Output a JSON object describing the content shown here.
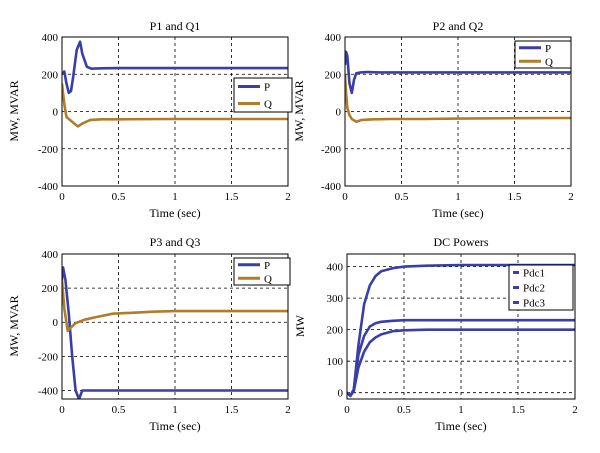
{
  "colors": {
    "P": "#3a3fa8",
    "Q": "#b07d2a",
    "Pdc": "#3a3fa8"
  },
  "chart_data": [
    {
      "type": "line",
      "title": "P1 and Q1",
      "xlabel": "Time (sec)",
      "ylabel": "MW, MVAR",
      "xlim": [
        0,
        2
      ],
      "ylim": [
        -400,
        400
      ],
      "xticks": [
        "0",
        "0.5",
        "1",
        "1.5",
        "2"
      ],
      "yticks": [
        "400",
        "200",
        "0",
        "-200",
        "-400"
      ],
      "legend": "top-right",
      "grid": true,
      "series": [
        {
          "name": "P",
          "color": "P",
          "x": [
            0,
            0.02,
            0.04,
            0.06,
            0.08,
            0.1,
            0.13,
            0.16,
            0.18,
            0.22,
            0.26,
            0.35,
            0.5,
            1,
            1.5,
            2
          ],
          "y": [
            200,
            215,
            150,
            100,
            110,
            190,
            330,
            375,
            310,
            240,
            230,
            232,
            233,
            233,
            233,
            233
          ]
        },
        {
          "name": "Q",
          "color": "Q",
          "x": [
            0,
            0.02,
            0.04,
            0.07,
            0.1,
            0.14,
            0.18,
            0.25,
            0.35,
            0.5,
            1,
            1.5,
            2
          ],
          "y": [
            150,
            40,
            -30,
            -45,
            -60,
            -80,
            -65,
            -45,
            -42,
            -42,
            -40,
            -40,
            -40
          ]
        }
      ]
    },
    {
      "type": "line",
      "title": "P2 and Q2",
      "xlabel": "Time (sec)",
      "ylabel": "MW, MVAR",
      "xlim": [
        0,
        2
      ],
      "ylim": [
        -400,
        400
      ],
      "xticks": [
        "0",
        "0.5",
        "1",
        "1.5",
        "2"
      ],
      "yticks": [
        "400",
        "200",
        "0",
        "-200",
        "-400"
      ],
      "legend": "top-right",
      "grid": true,
      "series": [
        {
          "name": "P",
          "color": "P",
          "x": [
            0,
            0.01,
            0.02,
            0.04,
            0.06,
            0.08,
            0.1,
            0.14,
            0.2,
            0.3,
            0.5,
            1,
            1.5,
            2
          ],
          "y": [
            250,
            320,
            300,
            150,
            100,
            170,
            205,
            210,
            212,
            210,
            210,
            210,
            210,
            210
          ]
        },
        {
          "name": "Q",
          "color": "Q",
          "x": [
            0,
            0.01,
            0.02,
            0.04,
            0.06,
            0.1,
            0.15,
            0.25,
            0.4,
            0.7,
            1,
            1.5,
            2
          ],
          "y": [
            200,
            100,
            20,
            -20,
            -40,
            -55,
            -45,
            -42,
            -40,
            -40,
            -38,
            -36,
            -35
          ]
        }
      ]
    },
    {
      "type": "line",
      "title": "P3 and Q3",
      "xlabel": "Time (sec)",
      "ylabel": "MW, MVAR",
      "xlim": [
        0,
        2
      ],
      "ylim": [
        -450,
        400
      ],
      "xticks": [
        "0",
        "0.5",
        "1",
        "1.5",
        "2"
      ],
      "yticks": [
        "400",
        "200",
        "0",
        "-200",
        "-400"
      ],
      "legend": "top-right",
      "grid": true,
      "series": [
        {
          "name": "P",
          "color": "P",
          "x": [
            0,
            0.01,
            0.03,
            0.06,
            0.09,
            0.12,
            0.15,
            0.18,
            0.25,
            0.5,
            1,
            1.5,
            2
          ],
          "y": [
            250,
            320,
            250,
            50,
            -200,
            -400,
            -450,
            -400,
            -400,
            -400,
            -400,
            -400,
            -400
          ]
        },
        {
          "name": "Q",
          "color": "Q",
          "x": [
            0,
            0.02,
            0.05,
            0.08,
            0.12,
            0.2,
            0.3,
            0.45,
            0.6,
            0.8,
            1,
            1.5,
            2
          ],
          "y": [
            250,
            80,
            -50,
            -30,
            -5,
            15,
            30,
            50,
            55,
            62,
            65,
            65,
            65
          ]
        }
      ]
    },
    {
      "type": "line",
      "title": "DC Powers",
      "xlabel": "Time (sec)",
      "ylabel": "MW",
      "xlim": [
        0,
        2
      ],
      "ylim": [
        -20,
        440
      ],
      "xticks": [
        "0",
        "0.5",
        "1",
        "1.5",
        "2"
      ],
      "yticks": [
        "400",
        "300",
        "200",
        "100",
        "0"
      ],
      "legend": "top-right",
      "grid": true,
      "series": [
        {
          "name": "Pdc1",
          "color": "Pdc",
          "x": [
            0,
            0.03,
            0.06,
            0.1,
            0.15,
            0.2,
            0.25,
            0.3,
            0.4,
            0.5,
            0.7,
            1,
            1.5,
            2
          ],
          "y": [
            0,
            -10,
            10,
            150,
            280,
            340,
            370,
            385,
            395,
            400,
            403,
            405,
            405,
            405
          ]
        },
        {
          "name": "Pdc2",
          "color": "Pdc",
          "x": [
            0,
            0.03,
            0.06,
            0.1,
            0.15,
            0.2,
            0.25,
            0.3,
            0.4,
            0.5,
            0.7,
            1,
            1.5,
            2
          ],
          "y": [
            0,
            -10,
            10,
            120,
            180,
            210,
            220,
            225,
            228,
            230,
            230,
            230,
            230,
            230
          ]
        },
        {
          "name": "Pdc3",
          "color": "Pdc",
          "x": [
            0,
            0.03,
            0.06,
            0.1,
            0.15,
            0.2,
            0.25,
            0.3,
            0.4,
            0.5,
            0.7,
            1,
            1.5,
            2
          ],
          "y": [
            0,
            -10,
            5,
            80,
            130,
            160,
            175,
            185,
            195,
            198,
            200,
            200,
            200,
            200
          ]
        }
      ]
    }
  ]
}
